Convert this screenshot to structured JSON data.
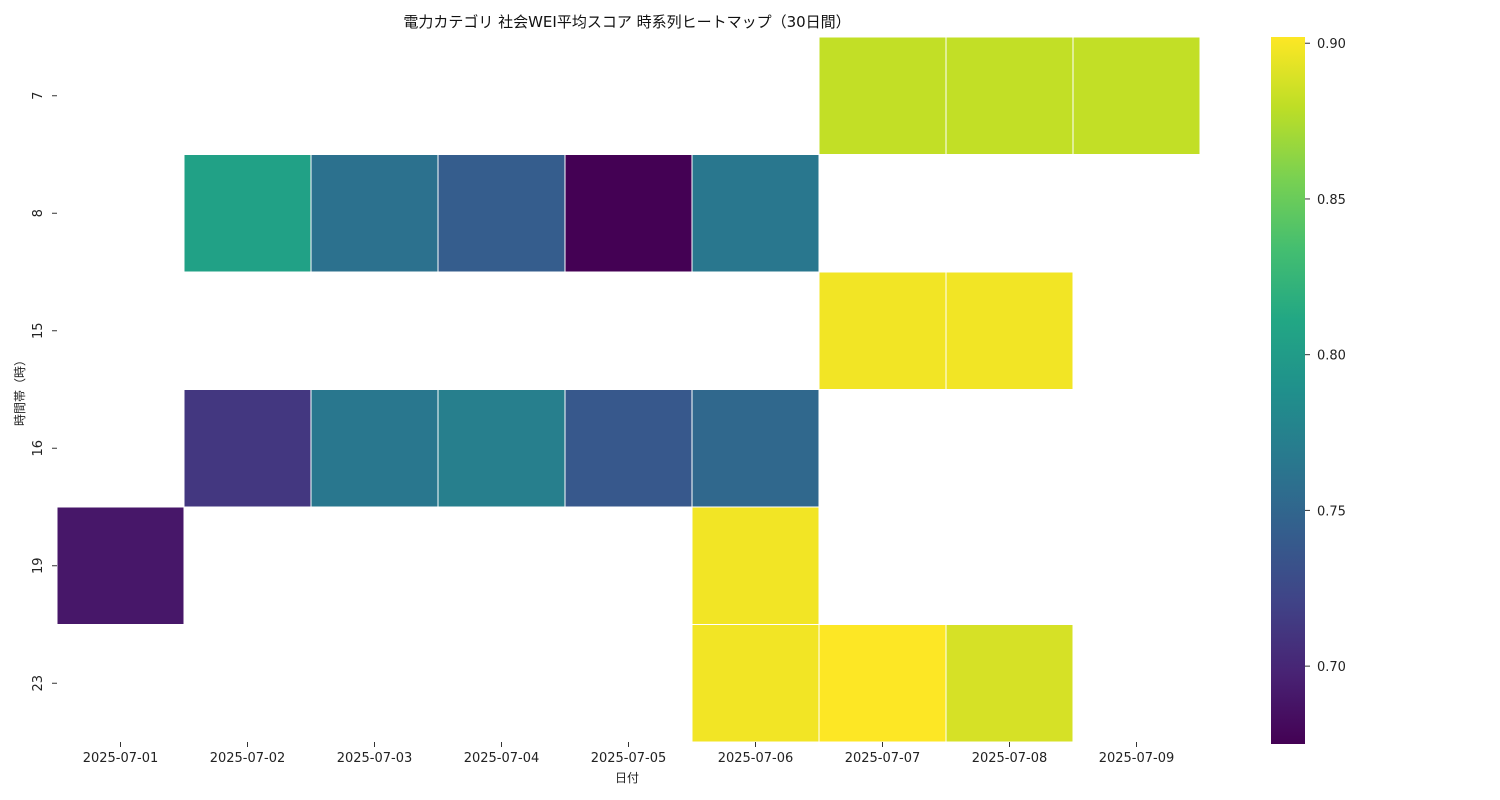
{
  "chart_data": {
    "type": "heatmap",
    "title": "電力カテゴリ 社会WEI平均スコア 時系列ヒートマップ（30日間）",
    "xlabel": "日付",
    "ylabel": "時間帯（時）",
    "x": [
      "2025-07-01",
      "2025-07-02",
      "2025-07-03",
      "2025-07-04",
      "2025-07-05",
      "2025-07-06",
      "2025-07-07",
      "2025-07-08",
      "2025-07-09"
    ],
    "y": [
      "7",
      "8",
      "15",
      "16",
      "19",
      "23"
    ],
    "values": [
      [
        null,
        null,
        null,
        null,
        null,
        null,
        0.881,
        0.881,
        0.881
      ],
      [
        null,
        0.805,
        0.76,
        0.742,
        0.675,
        0.765,
        null,
        null,
        null
      ],
      [
        null,
        null,
        null,
        null,
        null,
        null,
        0.898,
        0.898,
        null
      ],
      [
        null,
        0.712,
        0.765,
        0.772,
        0.738,
        0.752,
        null,
        null,
        null
      ],
      [
        0.69,
        null,
        null,
        null,
        null,
        0.898,
        null,
        null,
        null
      ],
      [
        null,
        null,
        null,
        null,
        null,
        0.898,
        0.902,
        0.888,
        null
      ]
    ],
    "colorscale": "viridis",
    "zlim": [
      0.675,
      0.902
    ],
    "colorbar_ticks": [
      "0.70",
      "0.75",
      "0.80",
      "0.85",
      "0.90"
    ],
    "colorbar_tick_values": [
      0.7,
      0.75,
      0.8,
      0.85,
      0.9
    ]
  }
}
